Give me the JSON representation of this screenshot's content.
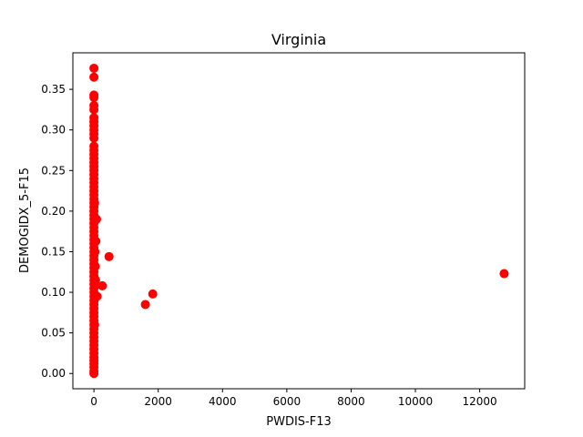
{
  "chart_data": {
    "type": "scatter",
    "title": "Virginia",
    "xlabel": "PWDIS-F13",
    "ylabel": "DEMOGIDX_5-F15",
    "xlim": [
      -655,
      13400
    ],
    "ylim": [
      -0.0188,
      0.395
    ],
    "xticks": [
      0,
      2000,
      4000,
      6000,
      8000,
      10000,
      12000
    ],
    "xtick_labels": [
      "0",
      "2000",
      "4000",
      "6000",
      "8000",
      "10000",
      "12000"
    ],
    "yticks": [
      0.0,
      0.05,
      0.1,
      0.15,
      0.2,
      0.25,
      0.3,
      0.35
    ],
    "ytick_labels": [
      "0.00",
      "0.05",
      "0.10",
      "0.15",
      "0.20",
      "0.25",
      "0.30",
      "0.35"
    ],
    "grid": false,
    "marker_color": "#ff0000",
    "points": [
      {
        "x": 0,
        "y": 0.0
      },
      {
        "x": 0,
        "y": 0.003
      },
      {
        "x": 0,
        "y": 0.008
      },
      {
        "x": 0,
        "y": 0.012
      },
      {
        "x": 0,
        "y": 0.016
      },
      {
        "x": 0,
        "y": 0.02
      },
      {
        "x": 0,
        "y": 0.025
      },
      {
        "x": 0,
        "y": 0.03
      },
      {
        "x": 0,
        "y": 0.035
      },
      {
        "x": 0,
        "y": 0.04
      },
      {
        "x": 0,
        "y": 0.045
      },
      {
        "x": 0,
        "y": 0.05
      },
      {
        "x": 0,
        "y": 0.055
      },
      {
        "x": 0,
        "y": 0.06
      },
      {
        "x": 0,
        "y": 0.065
      },
      {
        "x": 0,
        "y": 0.07
      },
      {
        "x": 0,
        "y": 0.075
      },
      {
        "x": 0,
        "y": 0.08
      },
      {
        "x": 0,
        "y": 0.085
      },
      {
        "x": 0,
        "y": 0.09
      },
      {
        "x": 0,
        "y": 0.095
      },
      {
        "x": 0,
        "y": 0.1
      },
      {
        "x": 0,
        "y": 0.105
      },
      {
        "x": 0,
        "y": 0.11
      },
      {
        "x": 0,
        "y": 0.115
      },
      {
        "x": 0,
        "y": 0.12
      },
      {
        "x": 0,
        "y": 0.125
      },
      {
        "x": 0,
        "y": 0.13
      },
      {
        "x": 0,
        "y": 0.135
      },
      {
        "x": 0,
        "y": 0.14
      },
      {
        "x": 0,
        "y": 0.145
      },
      {
        "x": 0,
        "y": 0.15
      },
      {
        "x": 0,
        "y": 0.155
      },
      {
        "x": 0,
        "y": 0.16
      },
      {
        "x": 0,
        "y": 0.165
      },
      {
        "x": 0,
        "y": 0.17
      },
      {
        "x": 0,
        "y": 0.175
      },
      {
        "x": 0,
        "y": 0.18
      },
      {
        "x": 0,
        "y": 0.185
      },
      {
        "x": 0,
        "y": 0.19
      },
      {
        "x": 0,
        "y": 0.195
      },
      {
        "x": 0,
        "y": 0.2
      },
      {
        "x": 0,
        "y": 0.205
      },
      {
        "x": 0,
        "y": 0.21
      },
      {
        "x": 0,
        "y": 0.215
      },
      {
        "x": 0,
        "y": 0.22
      },
      {
        "x": 0,
        "y": 0.225
      },
      {
        "x": 0,
        "y": 0.23
      },
      {
        "x": 0,
        "y": 0.235
      },
      {
        "x": 0,
        "y": 0.24
      },
      {
        "x": 0,
        "y": 0.245
      },
      {
        "x": 0,
        "y": 0.25
      },
      {
        "x": 0,
        "y": 0.255
      },
      {
        "x": 0,
        "y": 0.26
      },
      {
        "x": 0,
        "y": 0.265
      },
      {
        "x": 0,
        "y": 0.27
      },
      {
        "x": 0,
        "y": 0.275
      },
      {
        "x": 0,
        "y": 0.28
      },
      {
        "x": 0,
        "y": 0.29
      },
      {
        "x": 0,
        "y": 0.295
      },
      {
        "x": 0,
        "y": 0.3
      },
      {
        "x": 0,
        "y": 0.305
      },
      {
        "x": 0,
        "y": 0.31
      },
      {
        "x": 0,
        "y": 0.315
      },
      {
        "x": 0,
        "y": 0.325
      },
      {
        "x": 0,
        "y": 0.33
      },
      {
        "x": 0,
        "y": 0.34
      },
      {
        "x": 0,
        "y": 0.343
      },
      {
        "x": 0,
        "y": 0.365
      },
      {
        "x": 0,
        "y": 0.376
      },
      {
        "x": 10,
        "y": 0.09
      },
      {
        "x": 20,
        "y": 0.06
      },
      {
        "x": 30,
        "y": 0.15
      },
      {
        "x": 40,
        "y": 0.132
      },
      {
        "x": 50,
        "y": 0.115
      },
      {
        "x": 60,
        "y": 0.163
      },
      {
        "x": 80,
        "y": 0.19
      },
      {
        "x": 100,
        "y": 0.095
      },
      {
        "x": 20,
        "y": 0.21
      },
      {
        "x": 260,
        "y": 0.108
      },
      {
        "x": 470,
        "y": 0.144
      },
      {
        "x": 1600,
        "y": 0.085
      },
      {
        "x": 1830,
        "y": 0.098
      },
      {
        "x": 12760,
        "y": 0.123
      }
    ]
  }
}
